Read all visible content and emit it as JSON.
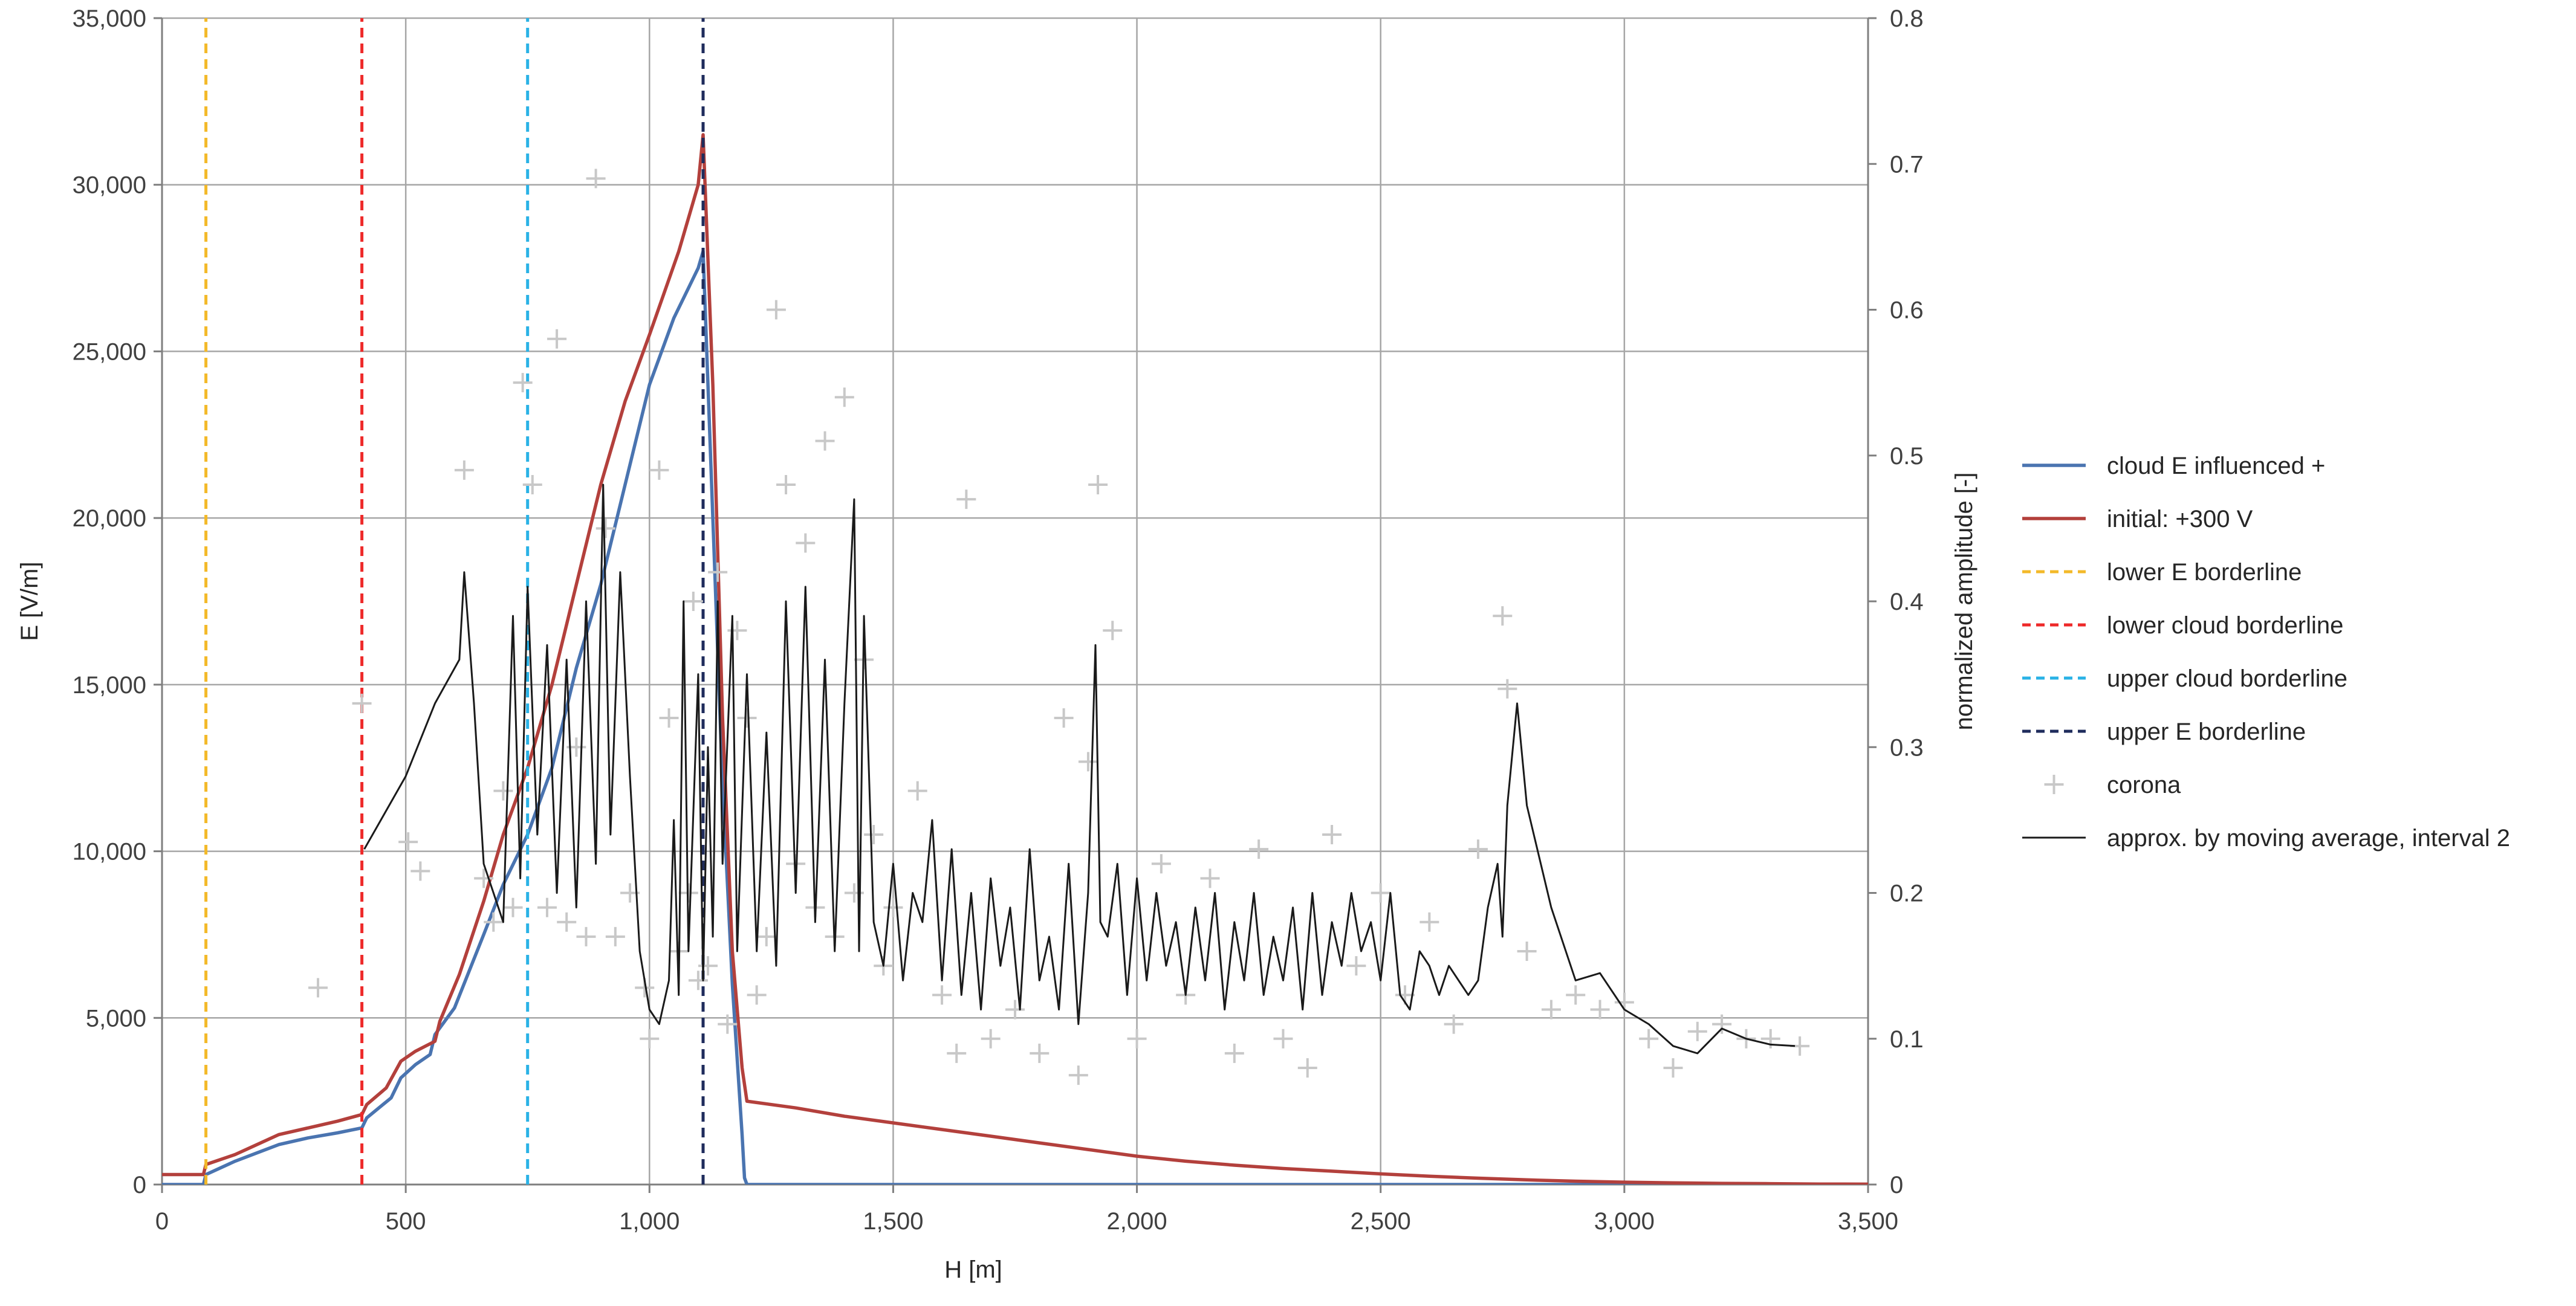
{
  "chart_data": {
    "type": "line",
    "xlabel": "H [m]",
    "ylabel": "E [V/m]",
    "y2label": "normalized amplitude [-]",
    "xlim": [
      0,
      3500
    ],
    "ylim": [
      0,
      35000
    ],
    "y2lim": [
      0,
      0.8
    ],
    "grid": true,
    "legend_position": "right",
    "x_ticks": [
      0,
      500,
      1000,
      1500,
      2000,
      2500,
      3000,
      3500
    ],
    "x_tick_labels": [
      "0",
      "500",
      "1,000",
      "1,500",
      "2,000",
      "2,500",
      "3,000",
      "3,500"
    ],
    "y_ticks": [
      0,
      5000,
      10000,
      15000,
      20000,
      25000,
      30000,
      35000
    ],
    "y_tick_labels": [
      "0",
      "5,000",
      "10,000",
      "15,000",
      "20,000",
      "25,000",
      "30,000",
      "35,000"
    ],
    "y2_ticks": [
      0,
      0.1,
      0.2,
      0.3,
      0.4,
      0.5,
      0.6,
      0.7,
      0.8
    ],
    "y2_tick_labels": [
      "0",
      "0.1",
      "0.2",
      "0.3",
      "0.4",
      "0.5",
      "0.6",
      "0.7",
      "0.8"
    ],
    "series": [
      {
        "name": "cloud E influenced +",
        "axis": "y1",
        "style": "solid",
        "color": "#4a74b0",
        "x": [
          0,
          85,
          90,
          150,
          240,
          300,
          360,
          410,
          420,
          470,
          490,
          520,
          550,
          560,
          600,
          660,
          700,
          750,
          800,
          850,
          900,
          950,
          1000,
          1050,
          1100,
          1110,
          1130,
          1150,
          1170,
          1190,
          1195,
          1200,
          1300,
          3500
        ],
        "y": [
          0,
          0,
          300,
          700,
          1200,
          1400,
          1550,
          1700,
          2000,
          2600,
          3200,
          3600,
          3900,
          4500,
          5300,
          7500,
          9000,
          10500,
          12500,
          15500,
          18000,
          21000,
          24000,
          26000,
          27500,
          28000,
          20000,
          12000,
          6000,
          1500,
          200,
          0,
          0,
          0
        ]
      },
      {
        "name": "initial: +300 V",
        "axis": "y1",
        "style": "solid",
        "color": "#b3403c",
        "x": [
          0,
          85,
          90,
          150,
          240,
          300,
          360,
          410,
          420,
          460,
          490,
          520,
          560,
          570,
          610,
          660,
          700,
          750,
          800,
          850,
          900,
          950,
          1000,
          1060,
          1100,
          1110,
          1130,
          1150,
          1170,
          1190,
          1200,
          1300,
          1400,
          1500,
          1600,
          1700,
          1800,
          1900,
          2000,
          2100,
          2200,
          2300,
          2400,
          2500,
          2600,
          2700,
          2800,
          2900,
          3000,
          3100,
          3200,
          3300,
          3400,
          3500
        ],
        "y": [
          300,
          300,
          600,
          900,
          1500,
          1700,
          1900,
          2100,
          2400,
          2900,
          3700,
          4000,
          4300,
          4900,
          6300,
          8500,
          10500,
          12500,
          15000,
          18000,
          21000,
          23500,
          25500,
          28000,
          30000,
          31500,
          24000,
          14000,
          7000,
          3500,
          2500,
          2300,
          2050,
          1850,
          1650,
          1450,
          1250,
          1050,
          850,
          700,
          580,
          480,
          400,
          320,
          250,
          190,
          140,
          100,
          70,
          50,
          35,
          25,
          15,
          10
        ]
      },
      {
        "name": "lower E borderline",
        "axis": "y1",
        "style": "dashed",
        "color": "#f3b929",
        "x": [
          90,
          90
        ],
        "y": [
          0,
          35000
        ]
      },
      {
        "name": "lower cloud borderline",
        "axis": "y1",
        "style": "dashed",
        "color": "#ee2a2a",
        "x": [
          410,
          410
        ],
        "y": [
          0,
          35000
        ]
      },
      {
        "name": "upper cloud borderline",
        "axis": "y1",
        "style": "dashed",
        "color": "#2ab2e6",
        "x": [
          750,
          750
        ],
        "y": [
          0,
          35000
        ]
      },
      {
        "name": "upper E borderline",
        "axis": "y1",
        "style": "dashed",
        "color": "#1f2c5c",
        "x": [
          1110,
          1110
        ],
        "y": [
          0,
          35000
        ]
      },
      {
        "name": "corona",
        "axis": "y2",
        "style": "marker-plus",
        "color": "#c8c8c8",
        "x": [
          320,
          410,
          505,
          530,
          620,
          660,
          680,
          700,
          720,
          740,
          760,
          790,
          810,
          830,
          850,
          870,
          890,
          910,
          930,
          960,
          990,
          1000,
          1020,
          1040,
          1060,
          1080,
          1090,
          1100,
          1120,
          1140,
          1160,
          1180,
          1200,
          1220,
          1240,
          1260,
          1280,
          1300,
          1320,
          1340,
          1360,
          1380,
          1400,
          1420,
          1440,
          1460,
          1480,
          1500,
          1550,
          1600,
          1630,
          1650,
          1700,
          1750,
          1800,
          1850,
          1880,
          1900,
          1920,
          1950,
          2000,
          2050,
          2100,
          2150,
          2200,
          2250,
          2300,
          2350,
          2400,
          2450,
          2500,
          2550,
          2600,
          2650,
          2700,
          2750,
          2760,
          2800,
          2850,
          2900,
          2950,
          3000,
          3050,
          3100,
          3150,
          3200,
          3250,
          3300,
          3360
        ],
        "y": [
          0.135,
          0.33,
          0.235,
          0.215,
          0.49,
          0.21,
          0.18,
          0.27,
          0.19,
          0.55,
          0.48,
          0.19,
          0.58,
          0.18,
          0.3,
          0.17,
          0.69,
          0.45,
          0.17,
          0.2,
          0.135,
          0.1,
          0.49,
          0.32,
          0.16,
          0.2,
          0.4,
          0.14,
          0.15,
          0.42,
          0.11,
          0.38,
          0.32,
          0.13,
          0.17,
          0.6,
          0.48,
          0.22,
          0.44,
          0.19,
          0.51,
          0.17,
          0.54,
          0.2,
          0.36,
          0.24,
          0.15,
          0.19,
          0.27,
          0.13,
          0.09,
          0.47,
          0.1,
          0.12,
          0.09,
          0.32,
          0.075,
          0.29,
          0.48,
          0.38,
          0.1,
          0.22,
          0.13,
          0.21,
          0.09,
          0.23,
          0.1,
          0.08,
          0.24,
          0.15,
          0.2,
          0.13,
          0.18,
          0.11,
          0.23,
          0.39,
          0.34,
          0.16,
          0.12,
          0.13,
          0.12,
          0.125,
          0.1,
          0.08,
          0.105,
          0.11,
          0.1,
          0.1,
          0.095
        ]
      },
      {
        "name": "approx. by moving average, interval 2",
        "axis": "y2",
        "style": "solid-thin",
        "color": "#1a1a1a",
        "x": [
          415,
          500,
          560,
          610,
          620,
          640,
          660,
          680,
          700,
          720,
          735,
          750,
          770,
          790,
          810,
          830,
          850,
          870,
          890,
          905,
          920,
          940,
          960,
          980,
          1000,
          1020,
          1040,
          1050,
          1060,
          1070,
          1080,
          1100,
          1110,
          1120,
          1130,
          1140,
          1150,
          1170,
          1180,
          1200,
          1220,
          1240,
          1260,
          1280,
          1300,
          1320,
          1340,
          1360,
          1380,
          1400,
          1420,
          1430,
          1440,
          1460,
          1480,
          1500,
          1520,
          1540,
          1560,
          1580,
          1600,
          1620,
          1640,
          1660,
          1680,
          1700,
          1720,
          1740,
          1760,
          1780,
          1800,
          1820,
          1840,
          1860,
          1880,
          1900,
          1915,
          1925,
          1940,
          1960,
          1980,
          2000,
          2020,
          2040,
          2060,
          2080,
          2100,
          2120,
          2140,
          2160,
          2180,
          2200,
          2220,
          2240,
          2260,
          2280,
          2300,
          2320,
          2340,
          2360,
          2380,
          2400,
          2420,
          2440,
          2460,
          2480,
          2500,
          2520,
          2540,
          2560,
          2580,
          2600,
          2620,
          2640,
          2660,
          2680,
          2700,
          2720,
          2740,
          2750,
          2760,
          2780,
          2800,
          2850,
          2900,
          2950,
          3000,
          3050,
          3100,
          3150,
          3200,
          3250,
          3300,
          3350
        ],
        "y": [
          0.23,
          0.28,
          0.33,
          0.36,
          0.42,
          0.33,
          0.22,
          0.2,
          0.18,
          0.39,
          0.21,
          0.41,
          0.24,
          0.37,
          0.2,
          0.36,
          0.19,
          0.4,
          0.22,
          0.48,
          0.24,
          0.42,
          0.28,
          0.16,
          0.12,
          0.11,
          0.14,
          0.25,
          0.13,
          0.4,
          0.16,
          0.35,
          0.14,
          0.3,
          0.17,
          0.4,
          0.22,
          0.39,
          0.16,
          0.35,
          0.16,
          0.31,
          0.15,
          0.4,
          0.2,
          0.41,
          0.18,
          0.36,
          0.16,
          0.33,
          0.47,
          0.16,
          0.39,
          0.18,
          0.15,
          0.22,
          0.14,
          0.2,
          0.18,
          0.25,
          0.14,
          0.23,
          0.13,
          0.2,
          0.12,
          0.21,
          0.15,
          0.19,
          0.12,
          0.23,
          0.14,
          0.17,
          0.12,
          0.22,
          0.11,
          0.2,
          0.37,
          0.18,
          0.17,
          0.22,
          0.13,
          0.21,
          0.14,
          0.2,
          0.15,
          0.18,
          0.13,
          0.19,
          0.14,
          0.2,
          0.12,
          0.18,
          0.14,
          0.2,
          0.13,
          0.17,
          0.14,
          0.19,
          0.12,
          0.2,
          0.13,
          0.18,
          0.15,
          0.2,
          0.16,
          0.18,
          0.14,
          0.2,
          0.13,
          0.12,
          0.16,
          0.15,
          0.13,
          0.15,
          0.14,
          0.13,
          0.14,
          0.19,
          0.22,
          0.17,
          0.26,
          0.33,
          0.26,
          0.19,
          0.14,
          0.145,
          0.12,
          0.11,
          0.095,
          0.09,
          0.107,
          0.1,
          0.096,
          0.095
        ]
      }
    ]
  }
}
